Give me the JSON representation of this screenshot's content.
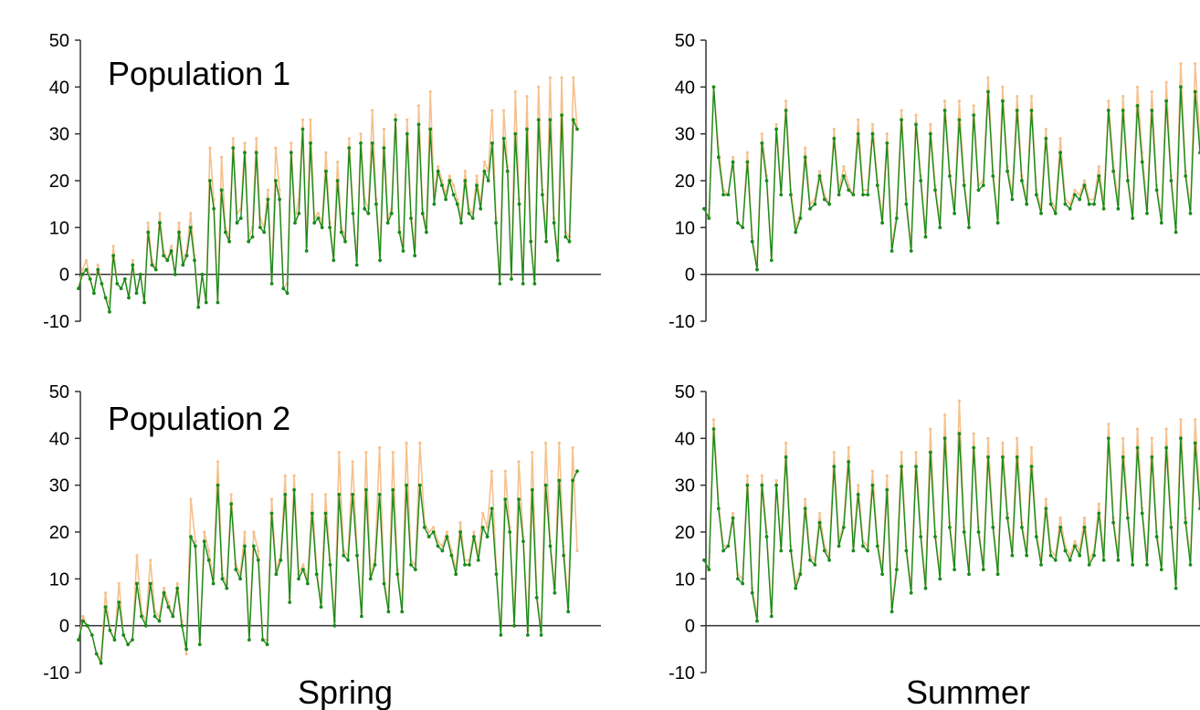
{
  "colors": {
    "series_1": "#1a8a1a",
    "series_2": "#f6c08c",
    "axis": "#333333",
    "text": "#000000"
  },
  "figure": {
    "column_labels": [
      "Spring",
      "Summer"
    ]
  },
  "chart_data": [
    {
      "type": "line",
      "panel": "top-left",
      "annotation": "Population 1",
      "ylim": [
        -10,
        50
      ],
      "yticks": [
        -10,
        0,
        10,
        20,
        30,
        40,
        50
      ],
      "grid": false,
      "legend": "none",
      "series": [
        {
          "color": "#f6c08c",
          "values": [
            -3,
            1,
            3,
            -1,
            -4,
            2,
            -2,
            -5,
            -6,
            6,
            -2,
            -3,
            -1,
            -5,
            3,
            -4,
            0,
            -6,
            11,
            3,
            1,
            13,
            5,
            3,
            6,
            0,
            11,
            3,
            5,
            13,
            4,
            -7,
            0,
            -6,
            27,
            16,
            -6,
            25,
            10,
            8,
            29,
            13,
            14,
            28,
            8,
            10,
            29,
            12,
            10,
            18,
            -2,
            27,
            18,
            -3,
            -2,
            28,
            12,
            16,
            33,
            6,
            33,
            12,
            13,
            11,
            26,
            11,
            4,
            24,
            10,
            8,
            29,
            14,
            3,
            30,
            16,
            14,
            35,
            16,
            4,
            31,
            12,
            14,
            34,
            10,
            6,
            33,
            13,
            6,
            36,
            14,
            10,
            39,
            17,
            23,
            20,
            17,
            21,
            19,
            16,
            12,
            22,
            14,
            13,
            21,
            15,
            24,
            22,
            35,
            12,
            -2,
            35,
            23,
            0,
            39,
            16,
            -1,
            38,
            7,
            -1,
            40,
            18,
            8,
            42,
            12,
            4,
            42,
            9,
            8,
            42,
            31
          ]
        },
        {
          "color": "#1a8a1a",
          "values": [
            -3,
            0,
            1,
            -1,
            -4,
            1,
            -2,
            -5,
            -8,
            4,
            -2,
            -3,
            -1,
            -5,
            2,
            -4,
            0,
            -6,
            9,
            2,
            1,
            11,
            4,
            3,
            5,
            0,
            9,
            2,
            4,
            10,
            3,
            -7,
            0,
            -6,
            20,
            14,
            -6,
            18,
            9,
            7,
            27,
            11,
            12,
            26,
            7,
            8,
            26,
            10,
            9,
            16,
            -2,
            20,
            16,
            -3,
            -4,
            26,
            11,
            13,
            31,
            5,
            28,
            11,
            12,
            10,
            22,
            10,
            3,
            20,
            9,
            7,
            27,
            13,
            2,
            28,
            14,
            13,
            28,
            15,
            3,
            27,
            11,
            13,
            33,
            9,
            5,
            30,
            12,
            4,
            32,
            13,
            9,
            31,
            15,
            22,
            19,
            16,
            20,
            17,
            15,
            11,
            20,
            13,
            12,
            19,
            14,
            22,
            20,
            28,
            11,
            -2,
            29,
            22,
            -1,
            30,
            15,
            -2,
            31,
            7,
            -2,
            33,
            17,
            7,
            33,
            11,
            3,
            34,
            8,
            7,
            33,
            31
          ]
        }
      ]
    },
    {
      "type": "line",
      "panel": "top-right",
      "annotation": "",
      "ylim": [
        -10,
        50
      ],
      "yticks": [
        -10,
        0,
        10,
        20,
        30,
        40,
        50
      ],
      "grid": false,
      "legend": "none",
      "series": [
        {
          "color": "#f6c08c",
          "values": [
            14,
            12,
            40,
            27,
            18,
            17,
            25,
            11,
            10,
            26,
            8,
            2,
            30,
            21,
            4,
            32,
            18,
            37,
            18,
            10,
            13,
            27,
            15,
            16,
            22,
            17,
            15,
            31,
            18,
            23,
            19,
            17,
            33,
            18,
            18,
            32,
            20,
            12,
            30,
            6,
            13,
            35,
            16,
            6,
            34,
            21,
            9,
            32,
            19,
            11,
            37,
            22,
            14,
            37,
            20,
            11,
            36,
            19,
            20,
            42,
            22,
            12,
            40,
            23,
            17,
            38,
            21,
            16,
            38,
            18,
            14,
            31,
            16,
            14,
            29,
            16,
            15,
            18,
            17,
            20,
            16,
            16,
            23,
            15,
            37,
            24,
            15,
            38,
            21,
            13,
            40,
            26,
            14,
            39,
            19,
            12,
            41,
            21,
            10,
            45,
            22,
            14,
            45,
            28
          ]
        },
        {
          "color": "#1a8a1a",
          "values": [
            14,
            12,
            40,
            25,
            17,
            17,
            24,
            11,
            10,
            24,
            7,
            1,
            28,
            20,
            3,
            31,
            17,
            35,
            17,
            9,
            12,
            25,
            14,
            15,
            21,
            16,
            15,
            29,
            17,
            21,
            18,
            17,
            30,
            17,
            17,
            30,
            19,
            11,
            28,
            5,
            12,
            33,
            15,
            5,
            32,
            20,
            8,
            30,
            18,
            10,
            35,
            21,
            13,
            33,
            19,
            10,
            34,
            18,
            19,
            39,
            21,
            11,
            37,
            22,
            16,
            35,
            20,
            15,
            35,
            17,
            13,
            29,
            15,
            13,
            26,
            15,
            14,
            17,
            16,
            19,
            15,
            15,
            21,
            14,
            35,
            22,
            14,
            35,
            20,
            12,
            36,
            24,
            13,
            35,
            18,
            11,
            37,
            20,
            9,
            40,
            21,
            13,
            39,
            26
          ]
        }
      ]
    },
    {
      "type": "line",
      "panel": "bottom-left",
      "annotation": "Population 2",
      "ylim": [
        -10,
        50
      ],
      "yticks": [
        -10,
        0,
        10,
        20,
        30,
        40,
        50
      ],
      "grid": false,
      "legend": "none",
      "series": [
        {
          "color": "#f6c08c",
          "values": [
            -3,
            2,
            0,
            -2,
            -6,
            -7,
            7,
            -1,
            -3,
            9,
            -2,
            -4,
            -3,
            15,
            3,
            1,
            14,
            3,
            2,
            8,
            5,
            2,
            9,
            1,
            -6,
            27,
            18,
            -4,
            20,
            16,
            10,
            35,
            11,
            9,
            28,
            13,
            11,
            20,
            -3,
            20,
            16,
            -3,
            -3,
            27,
            12,
            15,
            32,
            6,
            32,
            11,
            13,
            10,
            28,
            12,
            5,
            28,
            14,
            1,
            37,
            16,
            15,
            35,
            16,
            3,
            37,
            11,
            14,
            38,
            10,
            4,
            37,
            12,
            4,
            39,
            14,
            13,
            39,
            22,
            20,
            21,
            18,
            17,
            20,
            16,
            12,
            22,
            14,
            14,
            20,
            15,
            24,
            21,
            33,
            12,
            -2,
            33,
            21,
            1,
            35,
            19,
            -1,
            37,
            7,
            -1,
            39,
            18,
            8,
            39,
            17,
            4,
            38,
            16
          ]
        },
        {
          "color": "#1a8a1a",
          "values": [
            -3,
            1,
            0,
            -2,
            -6,
            -8,
            4,
            -1,
            -3,
            5,
            -2,
            -4,
            -3,
            9,
            2,
            0,
            9,
            2,
            1,
            7,
            4,
            2,
            8,
            0,
            -5,
            19,
            17,
            -4,
            18,
            14,
            9,
            30,
            10,
            8,
            26,
            12,
            10,
            17,
            -3,
            17,
            14,
            -3,
            -4,
            24,
            11,
            14,
            28,
            5,
            29,
            10,
            12,
            9,
            24,
            11,
            4,
            24,
            13,
            0,
            28,
            15,
            14,
            28,
            15,
            2,
            29,
            10,
            13,
            28,
            9,
            3,
            29,
            11,
            3,
            30,
            13,
            12,
            30,
            21,
            19,
            20,
            17,
            16,
            19,
            15,
            11,
            20,
            13,
            13,
            19,
            14,
            21,
            19,
            25,
            11,
            -2,
            27,
            20,
            0,
            27,
            18,
            -2,
            29,
            6,
            -2,
            30,
            17,
            7,
            31,
            15,
            3,
            31,
            33
          ]
        }
      ]
    },
    {
      "type": "line",
      "panel": "bottom-right",
      "annotation": "",
      "ylim": [
        -10,
        50
      ],
      "yticks": [
        -10,
        0,
        10,
        20,
        30,
        40,
        50
      ],
      "grid": false,
      "legend": "none",
      "series": [
        {
          "color": "#f6c08c",
          "values": [
            14,
            12,
            44,
            26,
            17,
            17,
            24,
            11,
            10,
            32,
            8,
            2,
            32,
            20,
            3,
            31,
            17,
            39,
            17,
            9,
            12,
            27,
            15,
            14,
            24,
            17,
            15,
            37,
            18,
            22,
            38,
            17,
            30,
            18,
            17,
            33,
            18,
            12,
            32,
            4,
            13,
            37,
            17,
            8,
            37,
            20,
            9,
            42,
            20,
            11,
            45,
            22,
            13,
            48,
            21,
            12,
            41,
            21,
            13,
            40,
            22,
            12,
            39,
            24,
            16,
            40,
            22,
            16,
            38,
            20,
            14,
            27,
            16,
            15,
            23,
            17,
            15,
            18,
            16,
            23,
            14,
            16,
            26,
            15,
            43,
            23,
            15,
            40,
            24,
            14,
            42,
            25,
            14,
            40,
            20,
            13,
            42,
            22,
            9,
            44,
            23,
            14,
            44,
            26
          ]
        },
        {
          "color": "#1a8a1a",
          "values": [
            14,
            12,
            42,
            25,
            16,
            17,
            23,
            10,
            9,
            30,
            7,
            1,
            30,
            19,
            2,
            30,
            16,
            36,
            16,
            8,
            11,
            25,
            14,
            13,
            22,
            16,
            14,
            34,
            17,
            21,
            35,
            16,
            28,
            17,
            16,
            30,
            17,
            11,
            29,
            3,
            12,
            34,
            16,
            7,
            34,
            19,
            8,
            37,
            19,
            10,
            40,
            21,
            12,
            41,
            20,
            11,
            38,
            20,
            12,
            36,
            21,
            11,
            36,
            23,
            15,
            36,
            21,
            15,
            34,
            19,
            13,
            25,
            15,
            14,
            21,
            16,
            14,
            17,
            15,
            21,
            13,
            15,
            24,
            14,
            40,
            22,
            14,
            36,
            23,
            13,
            38,
            24,
            13,
            36,
            19,
            12,
            38,
            21,
            8,
            40,
            22,
            13,
            39,
            25
          ]
        }
      ]
    }
  ]
}
